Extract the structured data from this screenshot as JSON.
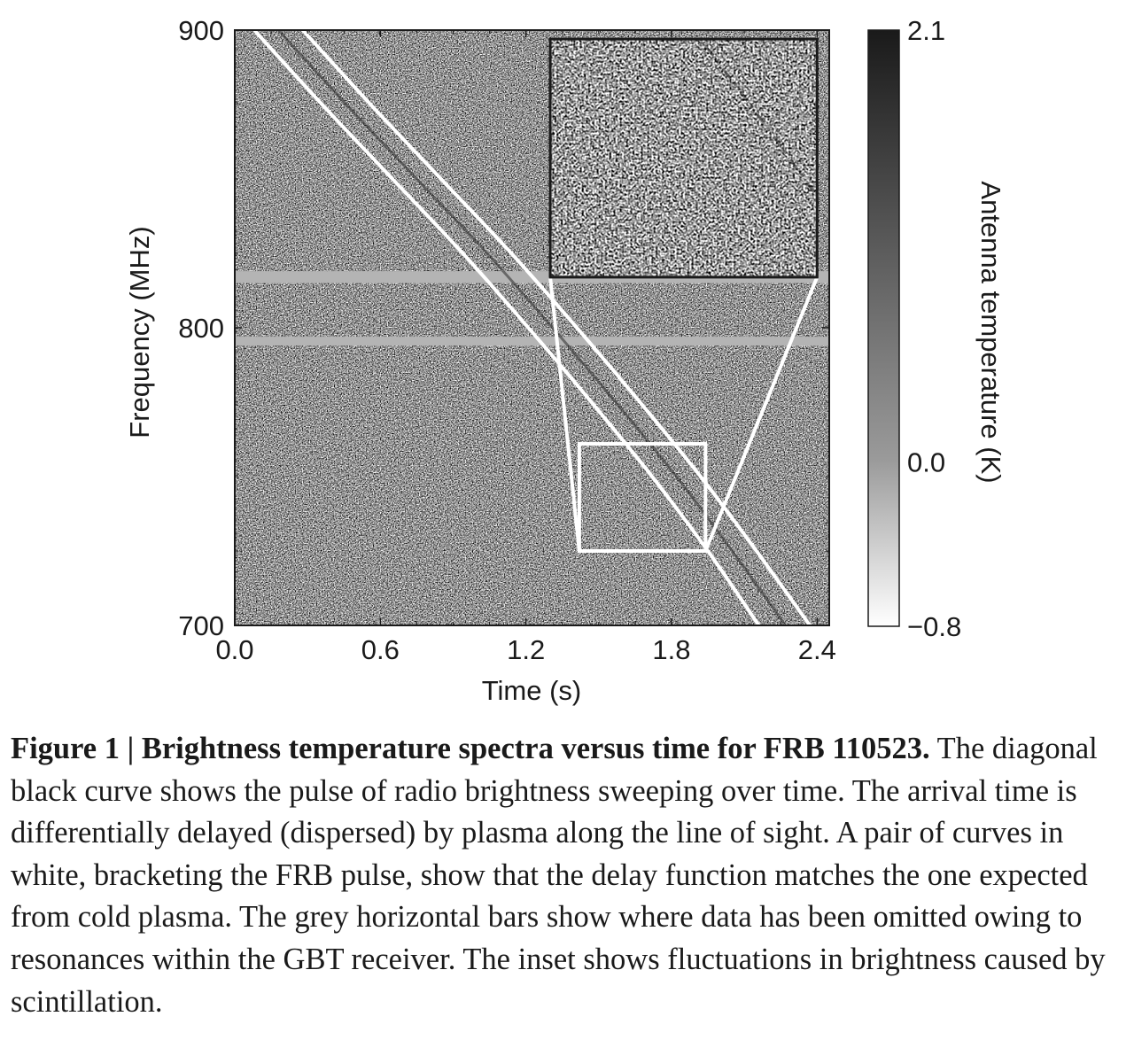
{
  "chart_data": {
    "type": "heatmap",
    "xlabel": "Time (s)",
    "ylabel": "Frequency (MHz)",
    "colorbar_label": "Antenna temperature (K)",
    "xlim": [
      0.0,
      2.45
    ],
    "ylim": [
      700,
      900
    ],
    "x_ticks": [
      "0.0",
      "0.6",
      "1.2",
      "1.8",
      "2.4"
    ],
    "x_tick_values": [
      0.0,
      0.6,
      1.2,
      1.8,
      2.4
    ],
    "y_ticks": [
      "700",
      "800",
      "900"
    ],
    "y_tick_values": [
      700,
      800,
      900
    ],
    "colorbar_ticks": [
      "2.1",
      "0.0",
      "−0.8"
    ],
    "colorbar_tick_values": [
      2.1,
      0.0,
      -0.8
    ],
    "colorbar_range": [
      -0.8,
      2.1
    ],
    "colormap": "gray_r",
    "masked_bands_mhz": [
      [
        815,
        819
      ],
      [
        794,
        797
      ]
    ],
    "bracket_curves": [
      {
        "x": [
          0.08,
          0.36,
          0.65,
          0.94,
          1.21,
          1.47,
          1.72,
          1.95,
          2.16
        ],
        "y": [
          900,
          875,
          850,
          825,
          800,
          775,
          750,
          725,
          700
        ]
      },
      {
        "x": [
          0.28,
          0.56,
          0.85,
          1.14,
          1.41,
          1.67,
          1.92,
          2.15,
          2.37
        ],
        "y": [
          900,
          875,
          850,
          825,
          800,
          775,
          750,
          725,
          700
        ]
      }
    ],
    "pulse_curve": {
      "x": [
        0.18,
        0.46,
        0.75,
        1.04,
        1.31,
        1.57,
        1.82,
        2.05,
        2.27
      ],
      "y": [
        900,
        875,
        850,
        825,
        800,
        775,
        750,
        725,
        700
      ]
    },
    "zoom_box": {
      "x": [
        1.42,
        1.94
      ],
      "y": [
        725,
        761
      ]
    },
    "inset_window": {
      "x": [
        1.3,
        2.4
      ],
      "y": [
        817,
        897
      ]
    }
  },
  "caption": {
    "title": "Figure 1 | Brightness temperature spectra versus time for FRB 110523.",
    "body": "The diagonal black curve shows the pulse of radio brightness sweeping over time. The arrival time is differentially delayed (dispersed) by plasma along the line of sight. A pair of curves in white, bracketing the FRB pulse, show that the delay function matches the one expected from cold plasma. The grey horizontal bars show where data has been omitted owing to resonances within the GBT receiver. The inset shows fluctuations in brightness caused by scintillation."
  }
}
